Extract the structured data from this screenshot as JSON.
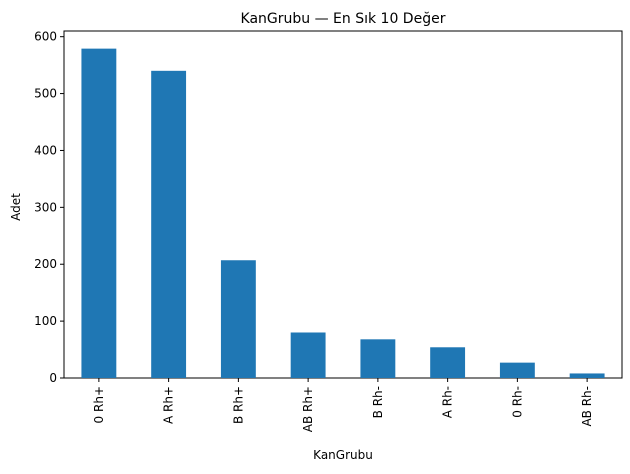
{
  "chart_data": {
    "type": "bar",
    "title": "KanGrubu — En Sık 10 Değer",
    "xlabel": "KanGrubu",
    "ylabel": "Adet",
    "categories": [
      "0 Rh+",
      "A Rh+",
      "B Rh+",
      "AB Rh+",
      "B Rh-",
      "A Rh-",
      "0 Rh-",
      "AB Rh-"
    ],
    "values": [
      579,
      540,
      207,
      80,
      68,
      54,
      27,
      8
    ],
    "ylim": [
      0,
      610
    ],
    "yticks": [
      0,
      100,
      200,
      300,
      400,
      500,
      600
    ],
    "grid": false,
    "legend": "none",
    "bar_color": "#1f77b4"
  }
}
